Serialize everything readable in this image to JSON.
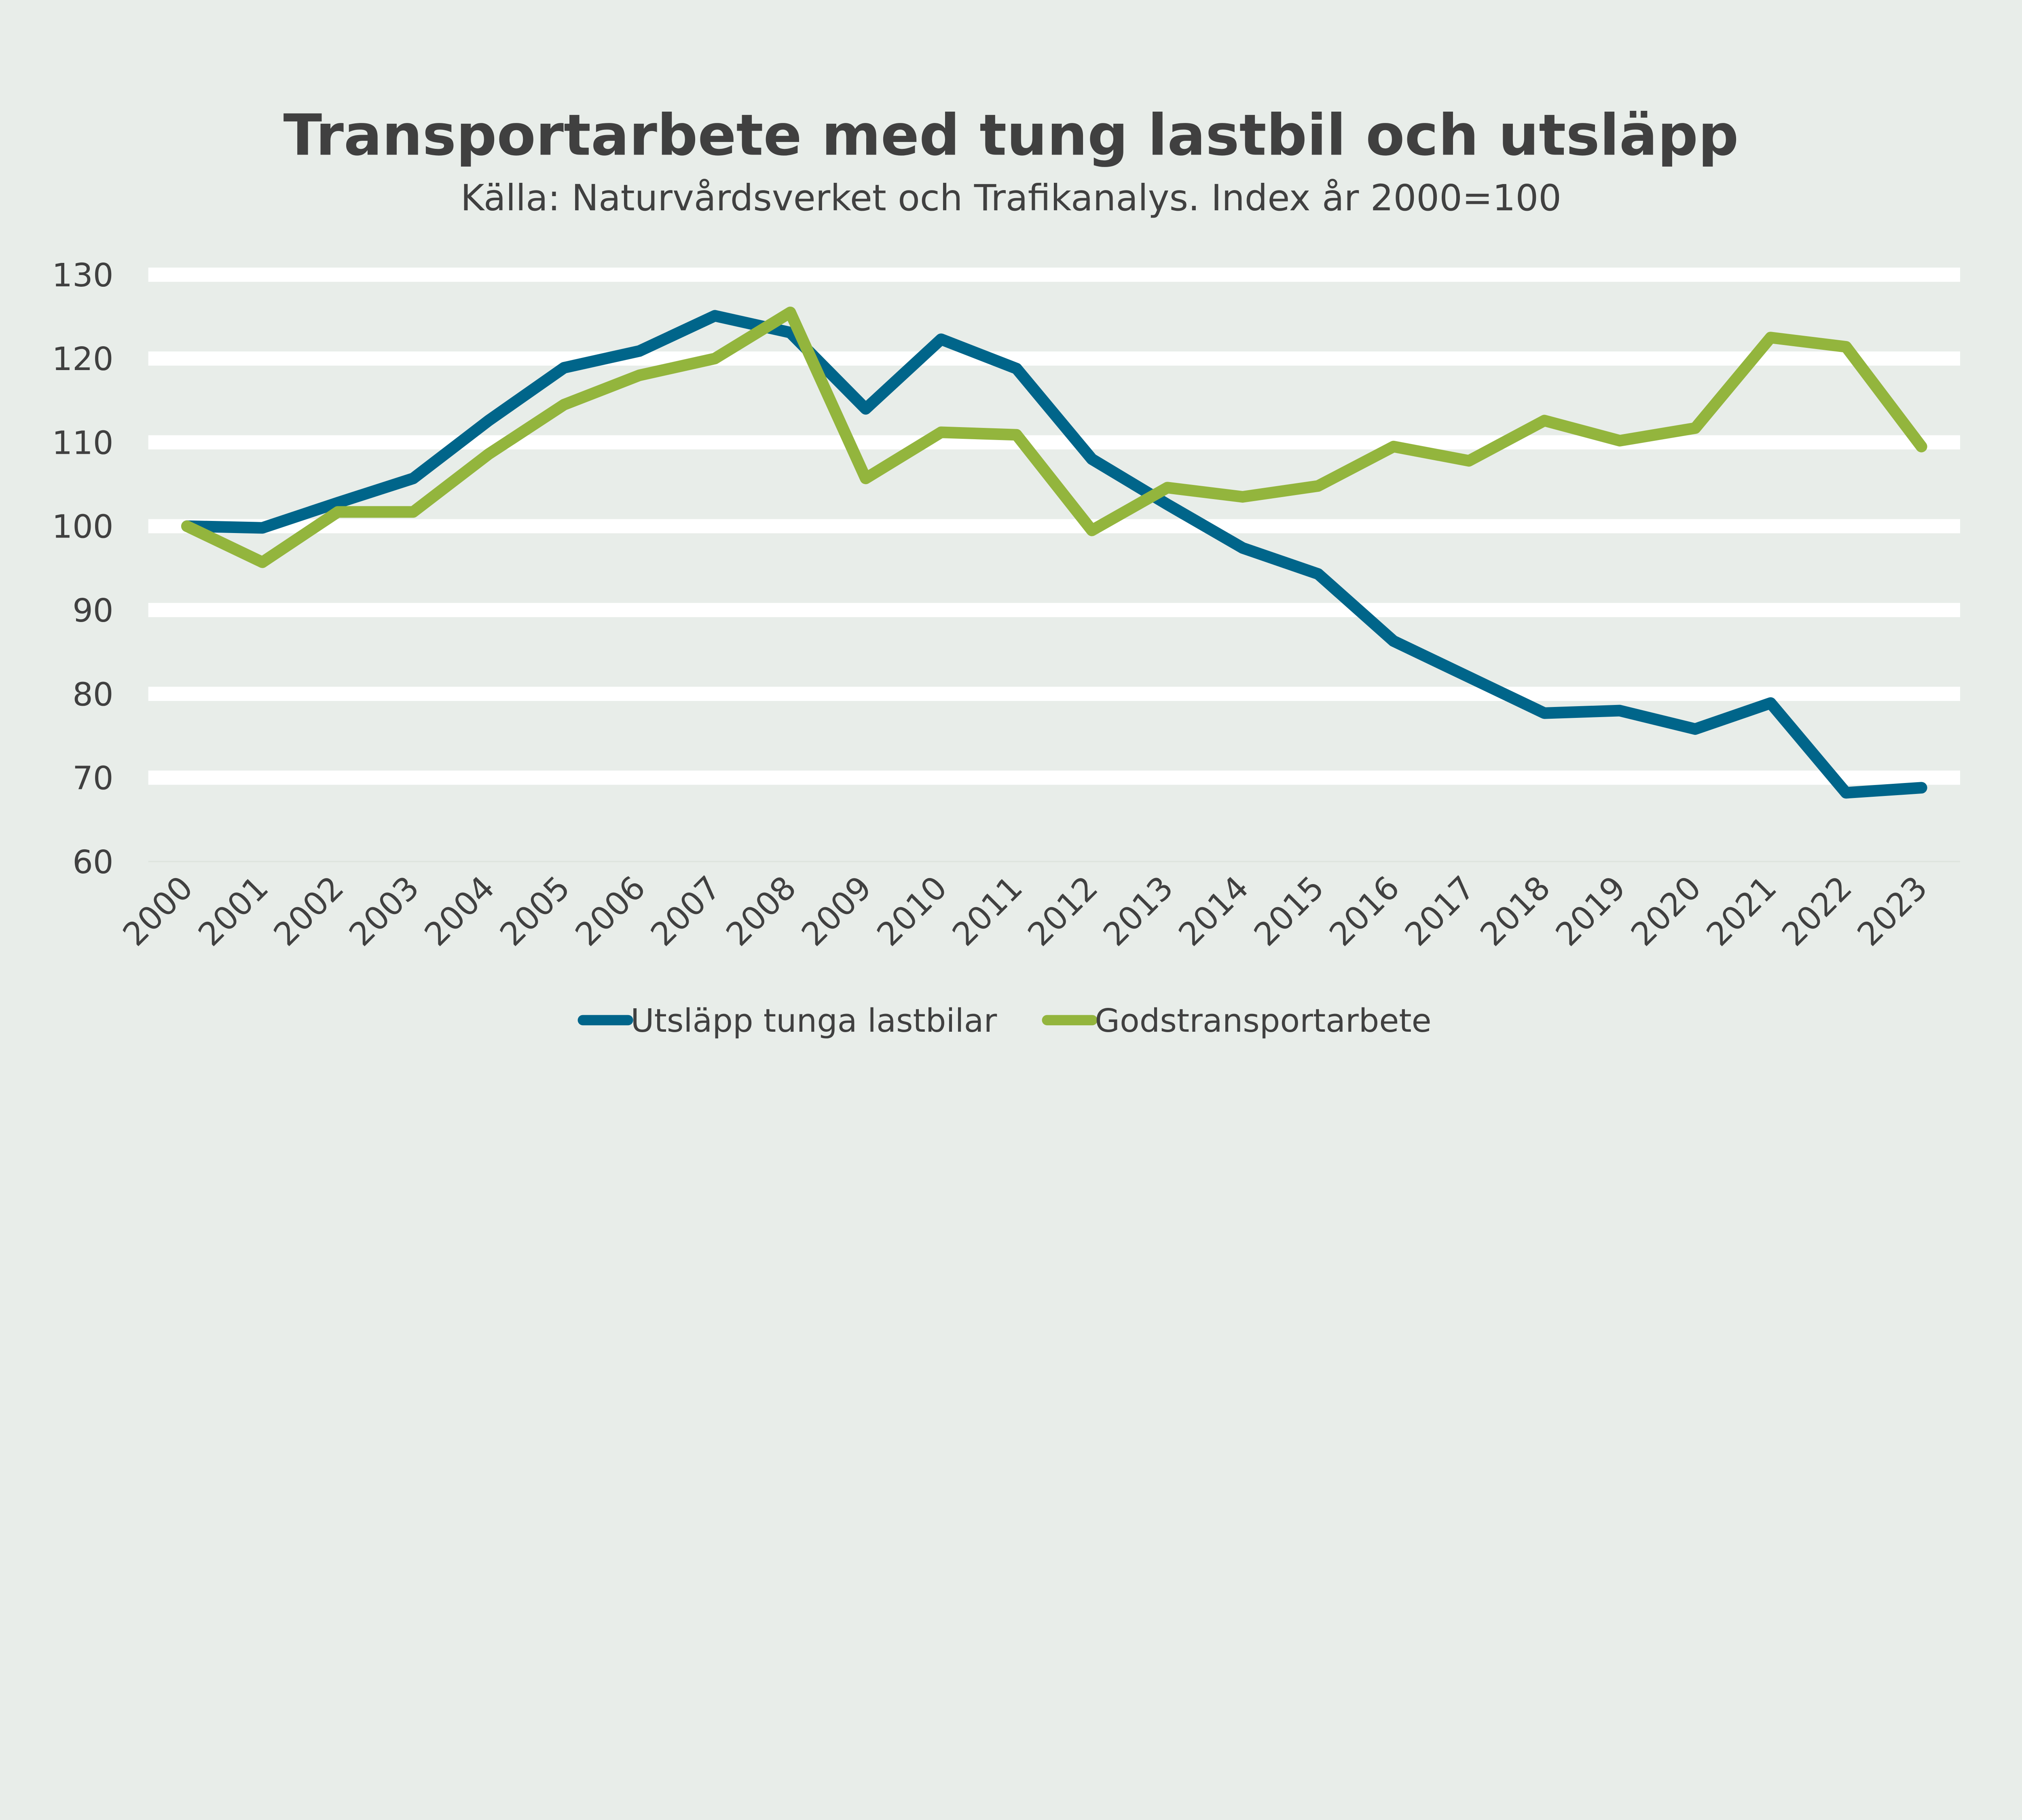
{
  "chart_data": {
    "type": "line",
    "title": "Transportarbete med tung lastbil och utsläpp",
    "subtitle": "Källa: Naturvårdsverket och Trafikanalys. Index år 2000=100",
    "xlabel": "",
    "ylabel": "",
    "ylim": [
      60,
      130
    ],
    "yticks": [
      60,
      70,
      80,
      90,
      100,
      110,
      120,
      130
    ],
    "grid": true,
    "legend_position": "bottom",
    "categories": [
      "2000",
      "2001",
      "2002",
      "2003",
      "2004",
      "2005",
      "2006",
      "2007",
      "2008",
      "2009",
      "2010",
      "2011",
      "2012",
      "2013",
      "2014",
      "2015",
      "2016",
      "2017",
      "2018",
      "2019",
      "2020",
      "2021",
      "2022",
      "2023"
    ],
    "series": [
      {
        "name": "Utsläpp tunga lastbilar",
        "color": "#00658a",
        "values": [
          100,
          99.8,
          102.8,
          105.7,
          112.6,
          118.9,
          120.9,
          125.1,
          123.1,
          114.0,
          122.3,
          118.8,
          108.0,
          102.6,
          97.4,
          94.3,
          86.3,
          82.0,
          77.7,
          78.0,
          75.8,
          78.9,
          68.2,
          68.8
        ]
      },
      {
        "name": "Godstransportarbete",
        "color": "#93b53d",
        "values": [
          100,
          95.7,
          101.7,
          101.7,
          108.6,
          114.5,
          118.0,
          120.0,
          125.5,
          105.7,
          111.2,
          110.9,
          99.5,
          104.6,
          103.5,
          104.8,
          109.5,
          107.8,
          112.6,
          110.2,
          111.7,
          122.5,
          121.4,
          109.5
        ]
      }
    ]
  },
  "colors": {
    "background": "#e8ede9",
    "grid": "#ffffff",
    "text": "#404040"
  }
}
